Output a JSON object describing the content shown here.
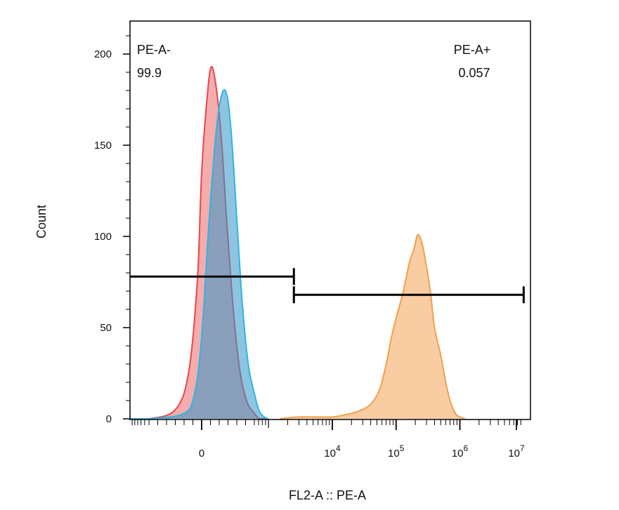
{
  "chart_data": {
    "type": "area",
    "xlabel": "FL2-A :: PE-A",
    "ylabel": "Count",
    "ylim": [
      0,
      218
    ],
    "x_scale": "biexponential",
    "y_ticks": [
      "0",
      "50",
      "100",
      "150",
      "200"
    ],
    "x_ticks": [
      {
        "value": 0,
        "base": "0",
        "exp": ""
      },
      {
        "value": 10000,
        "base": "10",
        "exp": "4"
      },
      {
        "value": 100000,
        "base": "10",
        "exp": "5"
      },
      {
        "value": 1000000,
        "base": "10",
        "exp": "6"
      },
      {
        "value": 10000000,
        "base": "10",
        "exp": "7"
      }
    ],
    "series": [
      {
        "color": "#e8474a",
        "fill": "rgba(232,71,74,0.45)",
        "points": [
          [
            -1500,
            0
          ],
          [
            -600,
            0
          ],
          [
            -300,
            5
          ],
          [
            -150,
            25
          ],
          [
            -50,
            75
          ],
          [
            0,
            135
          ],
          [
            60,
            175
          ],
          [
            110,
            193
          ],
          [
            170,
            180
          ],
          [
            230,
            150
          ],
          [
            290,
            105
          ],
          [
            360,
            60
          ],
          [
            430,
            28
          ],
          [
            510,
            10
          ],
          [
            600,
            3
          ],
          [
            720,
            0
          ],
          [
            900,
            0
          ]
        ]
      },
      {
        "color": "#2fb4e4",
        "fill": "rgba(47,150,200,0.55)",
        "points": [
          [
            -1500,
            0
          ],
          [
            -600,
            0
          ],
          [
            -200,
            3
          ],
          [
            -80,
            14
          ],
          [
            0,
            45
          ],
          [
            80,
            105
          ],
          [
            160,
            155
          ],
          [
            230,
            178
          ],
          [
            290,
            177
          ],
          [
            340,
            155
          ],
          [
            400,
            110
          ],
          [
            460,
            65
          ],
          [
            530,
            30
          ],
          [
            620,
            12
          ],
          [
            720,
            4
          ],
          [
            860,
            1
          ],
          [
            1000,
            0
          ]
        ]
      },
      {
        "color": "#f0a04b",
        "fill": "rgba(247,170,100,0.6)",
        "points": [
          [
            1500,
            0
          ],
          [
            3000,
            1
          ],
          [
            6000,
            1
          ],
          [
            10000,
            1
          ],
          [
            15000,
            2
          ],
          [
            25000,
            4
          ],
          [
            40000,
            8
          ],
          [
            55000,
            16
          ],
          [
            70000,
            30
          ],
          [
            85000,
            45
          ],
          [
            100000,
            55
          ],
          [
            130000,
            70
          ],
          [
            160000,
            85
          ],
          [
            190000,
            93
          ],
          [
            220000,
            101
          ],
          [
            260000,
            95
          ],
          [
            300000,
            83
          ],
          [
            350000,
            68
          ],
          [
            400000,
            50
          ],
          [
            500000,
            35
          ],
          [
            600000,
            20
          ],
          [
            700000,
            10
          ],
          [
            850000,
            3
          ],
          [
            1000000,
            1
          ],
          [
            1200000,
            0
          ]
        ]
      }
    ],
    "gates": [
      {
        "name": "PE-A-",
        "value": "99.9",
        "x_from": -1500,
        "x_to": 2500,
        "y": 78
      },
      {
        "name": "PE-A+",
        "value": "0.057",
        "x_from": 2500,
        "x_to": 10000000,
        "y": 68
      }
    ]
  }
}
